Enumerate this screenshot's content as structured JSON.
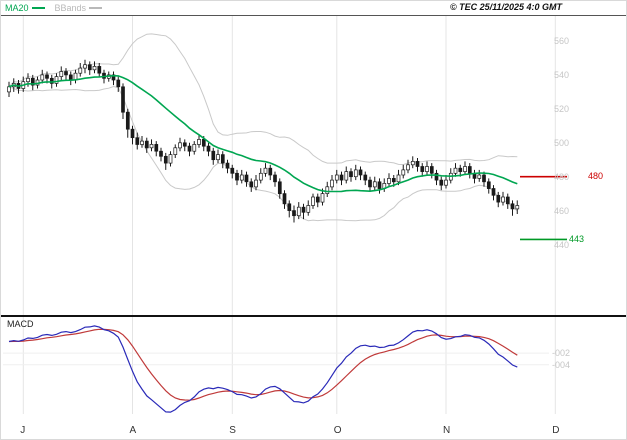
{
  "header": {
    "legend": [
      {
        "label": "MA20",
        "color": "#00a651"
      },
      {
        "label": "BBands",
        "color": "#b9b9b9"
      }
    ],
    "copyright": "© TEC 25/11/2025 4:0 GMT"
  },
  "chart_data": {
    "type": "candlestick",
    "title": "",
    "xlabel": "",
    "ylabel": "",
    "grid": "vertical-month-lines",
    "legend_position": "top-left",
    "price_axis": {
      "min": 440,
      "max": 560,
      "ticks": [
        {
          "label": "560",
          "value": 560
        },
        {
          "label": "540",
          "value": 540
        },
        {
          "label": "520",
          "value": 520
        },
        {
          "label": "500",
          "value": 500
        },
        {
          "label": "480",
          "value": 480
        },
        {
          "label": "460",
          "value": 460
        },
        {
          "label": "440",
          "value": 440
        }
      ]
    },
    "months": [
      {
        "label": "J",
        "index": 3
      },
      {
        "label": "A",
        "index": 26
      },
      {
        "label": "S",
        "index": 47
      },
      {
        "label": "O",
        "index": 69
      },
      {
        "label": "N",
        "index": 92
      },
      {
        "label": "D",
        "index": 115
      }
    ],
    "candles_format": [
      "open",
      "high",
      "low",
      "close"
    ],
    "candles": [
      [
        530,
        536,
        527,
        533
      ],
      [
        533,
        538,
        530,
        535
      ],
      [
        535,
        537,
        529,
        532
      ],
      [
        532,
        539,
        530,
        536
      ],
      [
        536,
        541,
        533,
        538
      ],
      [
        538,
        540,
        531,
        534
      ],
      [
        534,
        539,
        532,
        537
      ],
      [
        537,
        543,
        535,
        540
      ],
      [
        540,
        542,
        535,
        538
      ],
      [
        538,
        540,
        532,
        535
      ],
      [
        535,
        541,
        533,
        539
      ],
      [
        539,
        545,
        537,
        542
      ],
      [
        542,
        544,
        537,
        540
      ],
      [
        540,
        542,
        534,
        537
      ],
      [
        537,
        543,
        535,
        541
      ],
      [
        541,
        547,
        539,
        544
      ],
      [
        544,
        549,
        541,
        546
      ],
      [
        546,
        548,
        540,
        543
      ],
      [
        543,
        548,
        541,
        545
      ],
      [
        545,
        547,
        539,
        541
      ],
      [
        541,
        543,
        535,
        538
      ],
      [
        538,
        542,
        536,
        540
      ],
      [
        540,
        542,
        534,
        537
      ],
      [
        537,
        539,
        530,
        533
      ],
      [
        533,
        535,
        514,
        518
      ],
      [
        518,
        520,
        503,
        508
      ],
      [
        508,
        510,
        499,
        503
      ],
      [
        503,
        506,
        496,
        499
      ],
      [
        499,
        504,
        497,
        501
      ],
      [
        501,
        503,
        494,
        497
      ],
      [
        497,
        502,
        495,
        499
      ],
      [
        499,
        501,
        492,
        495
      ],
      [
        495,
        497,
        489,
        492
      ],
      [
        492,
        494,
        484,
        488
      ],
      [
        488,
        495,
        486,
        493
      ],
      [
        493,
        499,
        491,
        497
      ],
      [
        497,
        503,
        495,
        500
      ],
      [
        500,
        502,
        495,
        498
      ],
      [
        498,
        500,
        492,
        495
      ],
      [
        495,
        501,
        493,
        499
      ],
      [
        499,
        505,
        497,
        502
      ],
      [
        502,
        504,
        495,
        498
      ],
      [
        498,
        500,
        492,
        495
      ],
      [
        495,
        497,
        487,
        490
      ],
      [
        490,
        496,
        488,
        493
      ],
      [
        493,
        495,
        485,
        488
      ],
      [
        488,
        490,
        482,
        485
      ],
      [
        485,
        487,
        479,
        482
      ],
      [
        482,
        484,
        475,
        478
      ],
      [
        478,
        484,
        476,
        481
      ],
      [
        481,
        483,
        474,
        477
      ],
      [
        477,
        479,
        471,
        474
      ],
      [
        474,
        481,
        472,
        478
      ],
      [
        478,
        485,
        476,
        482
      ],
      [
        482,
        488,
        480,
        485
      ],
      [
        485,
        487,
        478,
        481
      ],
      [
        481,
        483,
        474,
        477
      ],
      [
        477,
        479,
        467,
        470
      ],
      [
        470,
        472,
        461,
        464
      ],
      [
        464,
        466,
        456,
        460
      ],
      [
        460,
        463,
        453,
        457
      ],
      [
        457,
        465,
        455,
        462
      ],
      [
        462,
        464,
        455,
        459
      ],
      [
        459,
        466,
        457,
        463
      ],
      [
        463,
        470,
        461,
        468
      ],
      [
        468,
        470,
        462,
        465
      ],
      [
        465,
        473,
        463,
        470
      ],
      [
        470,
        477,
        468,
        474
      ],
      [
        474,
        481,
        472,
        478
      ],
      [
        478,
        484,
        476,
        481
      ],
      [
        481,
        483,
        475,
        478
      ],
      [
        478,
        486,
        476,
        483
      ],
      [
        483,
        485,
        477,
        480
      ],
      [
        480,
        487,
        478,
        484
      ],
      [
        484,
        486,
        478,
        481
      ],
      [
        481,
        483,
        475,
        478
      ],
      [
        478,
        480,
        471,
        474
      ],
      [
        474,
        480,
        472,
        477
      ],
      [
        477,
        479,
        470,
        473
      ],
      [
        473,
        479,
        471,
        476
      ],
      [
        476,
        482,
        474,
        479
      ],
      [
        479,
        481,
        474,
        477
      ],
      [
        477,
        484,
        475,
        481
      ],
      [
        481,
        487,
        479,
        484
      ],
      [
        484,
        490,
        482,
        487
      ],
      [
        487,
        492,
        485,
        489
      ],
      [
        489,
        491,
        483,
        486
      ],
      [
        486,
        488,
        480,
        483
      ],
      [
        483,
        489,
        481,
        486
      ],
      [
        486,
        488,
        479,
        482
      ],
      [
        482,
        484,
        475,
        478
      ],
      [
        478,
        480,
        472,
        475
      ],
      [
        475,
        481,
        473,
        478
      ],
      [
        478,
        485,
        476,
        482
      ],
      [
        482,
        488,
        480,
        485
      ],
      [
        485,
        487,
        480,
        483
      ],
      [
        483,
        489,
        481,
        486
      ],
      [
        486,
        488,
        479,
        482
      ],
      [
        482,
        484,
        476,
        479
      ],
      [
        479,
        484,
        477,
        481
      ],
      [
        481,
        483,
        474,
        477
      ],
      [
        477,
        479,
        470,
        473
      ],
      [
        473,
        475,
        466,
        469
      ],
      [
        469,
        471,
        462,
        465
      ],
      [
        465,
        471,
        463,
        468
      ],
      [
        468,
        470,
        461,
        464
      ],
      [
        464,
        466,
        457,
        461
      ],
      [
        461,
        466,
        458,
        463
      ]
    ],
    "overlays": [
      {
        "name": "MA20",
        "type": "sma",
        "window": 20,
        "color": "#00a651"
      },
      {
        "name": "BBands",
        "type": "bollinger",
        "window": 20,
        "mult": 2,
        "color": "#c9c9c9"
      }
    ],
    "levels": [
      {
        "label": "480",
        "value": 480,
        "color": "#cc0000"
      },
      {
        "label": "443",
        "value": 443,
        "color": "#009926"
      }
    ],
    "macd": {
      "label": "MACD",
      "fast": 12,
      "slow": 26,
      "signal": 9,
      "line_color": "#2a2ab8",
      "signal_color": "#c03a3a",
      "ticks": [
        {
          "label": "-002",
          "value": -2
        },
        {
          "label": "-004",
          "value": -4
        }
      ]
    }
  }
}
